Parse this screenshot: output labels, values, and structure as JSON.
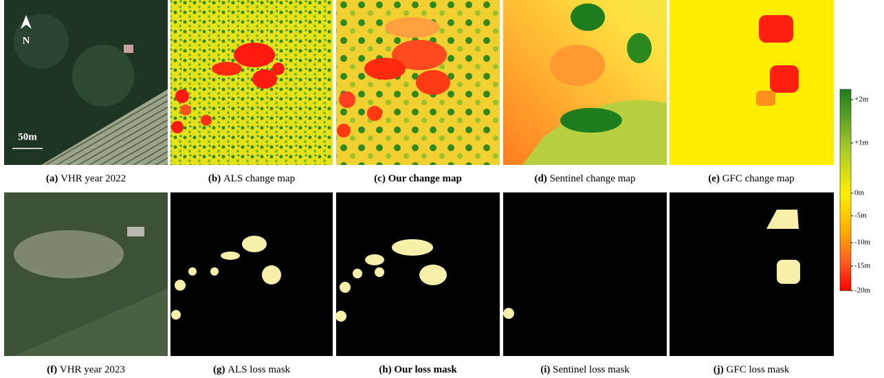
{
  "captions": [
    {
      "label": "(a)",
      "text": "VHR year 2022"
    },
    {
      "label": "(b)",
      "text": "ALS change map"
    },
    {
      "label": "(c)",
      "text": "Our change map"
    },
    {
      "label": "(d)",
      "text": "Sentinel change map"
    },
    {
      "label": "(e)",
      "text": "GFC change map"
    },
    {
      "label": "(f)",
      "text": "VHR year 2023"
    },
    {
      "label": "(g)",
      "text": "ALS loss mask"
    },
    {
      "label": "(h)",
      "text": "Our loss mask"
    },
    {
      "label": "(i)",
      "text": "Sentinel loss mask"
    },
    {
      "label": "(j)",
      "text": "GFC loss mask"
    }
  ],
  "overlay": {
    "north": "N",
    "scale": "50m"
  },
  "colorbar": {
    "ticks": [
      "+2m",
      "+1m",
      "0m",
      "-5m",
      "-10m",
      "-15m",
      "-20m"
    ]
  }
}
